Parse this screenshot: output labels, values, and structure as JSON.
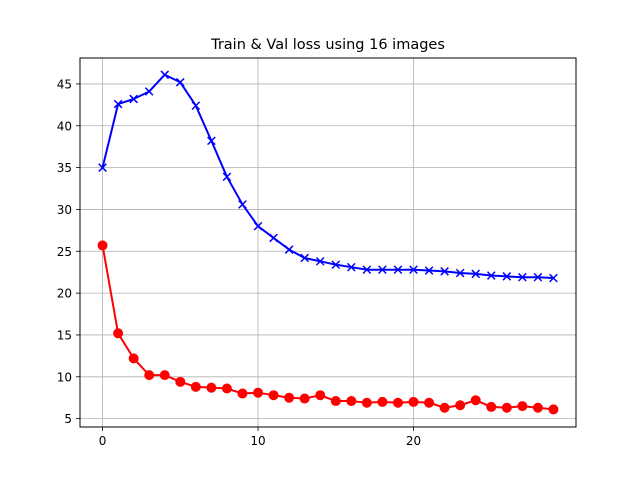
{
  "chart_data": {
    "type": "line",
    "title": "Train & Val loss using 16 images",
    "xlabel": "",
    "ylabel": "",
    "xlim": [
      -1.45,
      30.45
    ],
    "ylim": [
      4.0,
      48.1
    ],
    "xticks": [
      0,
      10,
      20
    ],
    "yticks": [
      5,
      10,
      15,
      20,
      25,
      30,
      35,
      40,
      45
    ],
    "grid": true,
    "x": [
      0,
      1,
      2,
      3,
      4,
      5,
      6,
      7,
      8,
      9,
      10,
      11,
      12,
      13,
      14,
      15,
      16,
      17,
      18,
      19,
      20,
      21,
      22,
      23,
      24,
      25,
      26,
      27,
      28,
      29
    ],
    "series": [
      {
        "color": "#0000ff",
        "marker": "x",
        "values": [
          35.0,
          42.6,
          43.2,
          44.1,
          46.1,
          45.2,
          42.4,
          38.2,
          33.9,
          30.6,
          28.0,
          26.6,
          25.2,
          24.2,
          23.8,
          23.4,
          23.1,
          22.8,
          22.8,
          22.8,
          22.8,
          22.7,
          22.6,
          22.4,
          22.3,
          22.1,
          22.0,
          21.9,
          21.9,
          21.8
        ]
      },
      {
        "color": "#ff0000",
        "marker": "o",
        "values": [
          25.7,
          15.2,
          12.2,
          10.2,
          10.2,
          9.4,
          8.8,
          8.7,
          8.6,
          8.0,
          8.1,
          7.8,
          7.5,
          7.4,
          7.8,
          7.1,
          7.1,
          6.9,
          7.0,
          6.9,
          7.0,
          6.9,
          6.3,
          6.6,
          7.2,
          6.4,
          6.3,
          6.5,
          6.3,
          6.1
        ]
      }
    ]
  }
}
